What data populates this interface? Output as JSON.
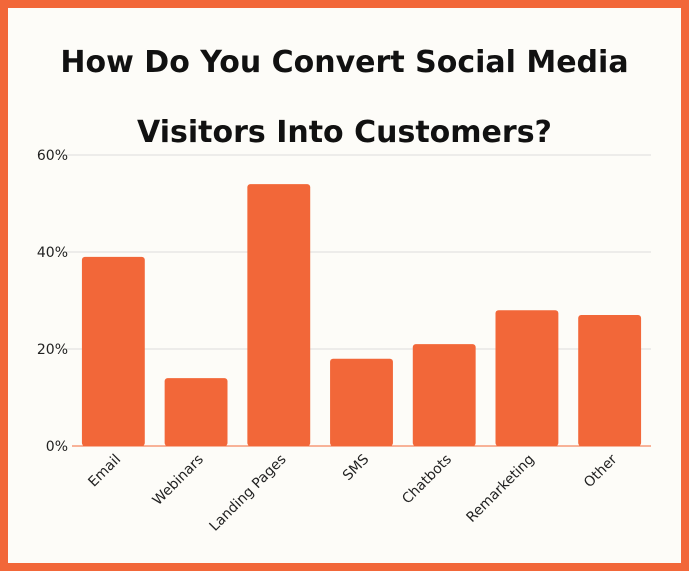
{
  "chart_data": {
    "type": "bar",
    "title_lines": [
      "How Do You Convert Social Media",
      "Visitors Into Customers?"
    ],
    "categories": [
      "Email",
      "Webinars",
      "Landing Pages",
      "SMS",
      "Chatbots",
      "Remarketing",
      "Other"
    ],
    "values": [
      39,
      14,
      54,
      18,
      21,
      28,
      27
    ],
    "ylim": [
      0,
      60
    ],
    "yticks": [
      0,
      20,
      40,
      60
    ],
    "ytick_labels": [
      "0%",
      "20%",
      "40%",
      "60%"
    ],
    "xlabel": "",
    "ylabel": "",
    "grid": true,
    "bar_color": "#f26739"
  }
}
